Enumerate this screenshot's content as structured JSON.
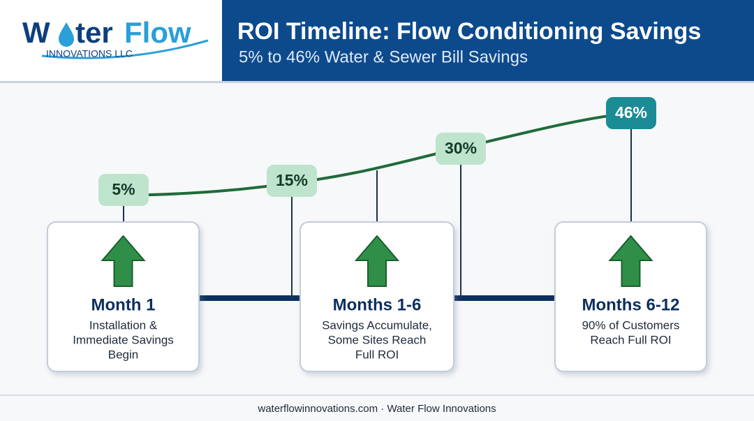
{
  "header": {
    "logo": {
      "w": "W",
      "rest": "ter",
      "flow": "Flow",
      "sub": "INNOVATIONS LLC"
    },
    "title": "ROI Timeline: Flow Conditioning Savings",
    "subtitle": "5% to 46% Water & Sewer Bill Savings"
  },
  "savings_points": [
    "5%",
    "15%",
    "30%",
    "46%"
  ],
  "stages": [
    {
      "title": "Month 1",
      "description": [
        "Installation &",
        "Immediate Savings",
        "Begin"
      ]
    },
    {
      "title": "Months 1-6",
      "description": [
        "Savings Accumulate,",
        "Some Sites Reach",
        "Full ROI"
      ]
    },
    {
      "title": "Months 6-12",
      "description": [
        "90% of Customers",
        "Reach Full ROI"
      ]
    }
  ],
  "footer": "waterflowinnovations.com · Water Flow Innovations"
}
